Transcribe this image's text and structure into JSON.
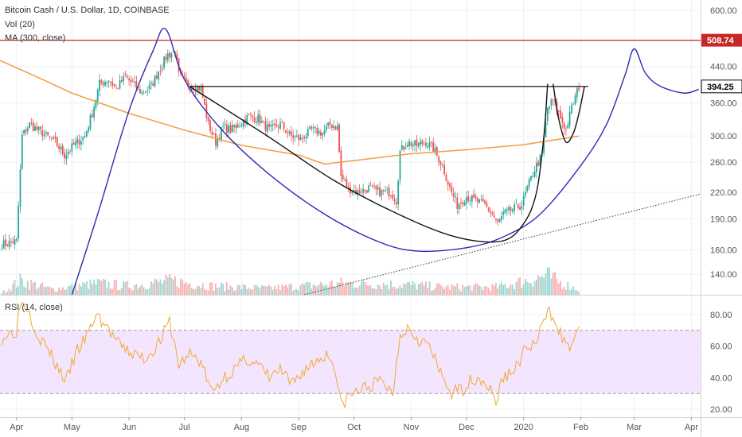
{
  "legend": {
    "symbol_line": "Bitcoin Cash / U.S. Dollar, 1D, COINBASE",
    "volume": "Vol (20)",
    "ma": "MA (300, close)",
    "rsi": "RSI (14, close)"
  },
  "chart_data": [
    {
      "type": "candlestick",
      "symbol": "Bitcoin Cash / U.S. Dollar",
      "interval": "1D",
      "exchange": "COINBASE",
      "yscale": "log",
      "ylim": [
        125,
        635
      ],
      "yticks": [
        140,
        160,
        190,
        220,
        260,
        300,
        360,
        440,
        600
      ],
      "ytick_labels": [
        "140.00",
        "160.00",
        "190.00",
        "220.00",
        "260.00",
        "300.00",
        "360.00",
        "440.00",
        "600.00"
      ],
      "xlim": [
        "2019-03-23",
        "2020-04-06"
      ],
      "xticks": [
        {
          "date": "2019-04-01",
          "label": "Apr"
        },
        {
          "date": "2019-05-01",
          "label": "May"
        },
        {
          "date": "2019-06-01",
          "label": "Jun"
        },
        {
          "date": "2019-07-01",
          "label": "Jul"
        },
        {
          "date": "2019-08-01",
          "label": "Aug"
        },
        {
          "date": "2019-09-01",
          "label": "Sep"
        },
        {
          "date": "2019-10-01",
          "label": "Oct"
        },
        {
          "date": "2019-11-01",
          "label": "Nov"
        },
        {
          "date": "2019-12-01",
          "label": "Dec"
        },
        {
          "date": "2020-01-01",
          "label": "2020"
        },
        {
          "date": "2020-02-01",
          "label": "Feb"
        },
        {
          "date": "2020-03-01",
          "label": "Mar"
        },
        {
          "date": "2020-04-01",
          "label": "Apr"
        }
      ],
      "close_path": [
        [
          "2019-03-24",
          165
        ],
        [
          "2019-04-01",
          168
        ],
        [
          "2019-04-04",
          300
        ],
        [
          "2019-04-08",
          320
        ],
        [
          "2019-04-15",
          305
        ],
        [
          "2019-04-22",
          290
        ],
        [
          "2019-04-27",
          270
        ],
        [
          "2019-05-02",
          285
        ],
        [
          "2019-05-08",
          300
        ],
        [
          "2019-05-12",
          340
        ],
        [
          "2019-05-16",
          400
        ],
        [
          "2019-05-21",
          410
        ],
        [
          "2019-05-25",
          390
        ],
        [
          "2019-05-30",
          415
        ],
        [
          "2019-06-03",
          400
        ],
        [
          "2019-06-08",
          380
        ],
        [
          "2019-06-13",
          395
        ],
        [
          "2019-06-17",
          430
        ],
        [
          "2019-06-22",
          470
        ],
        [
          "2019-06-26",
          480
        ],
        [
          "2019-06-28",
          420
        ],
        [
          "2019-07-02",
          400
        ],
        [
          "2019-07-06",
          395
        ],
        [
          "2019-07-10",
          390
        ],
        [
          "2019-07-14",
          320
        ],
        [
          "2019-07-18",
          290
        ],
        [
          "2019-07-22",
          315
        ],
        [
          "2019-07-26",
          310
        ],
        [
          "2019-07-31",
          320
        ],
        [
          "2019-08-05",
          335
        ],
        [
          "2019-08-10",
          330
        ],
        [
          "2019-08-16",
          310
        ],
        [
          "2019-08-22",
          320
        ],
        [
          "2019-08-28",
          300
        ],
        [
          "2019-09-02",
          295
        ],
        [
          "2019-09-08",
          310
        ],
        [
          "2019-09-14",
          305
        ],
        [
          "2019-09-18",
          320
        ],
        [
          "2019-09-22",
          315
        ],
        [
          "2019-09-24",
          240
        ],
        [
          "2019-09-28",
          225
        ],
        [
          "2019-10-03",
          220
        ],
        [
          "2019-10-09",
          225
        ],
        [
          "2019-10-15",
          220
        ],
        [
          "2019-10-21",
          220
        ],
        [
          "2019-10-24",
          210
        ],
        [
          "2019-10-26",
          275
        ],
        [
          "2019-10-30",
          290
        ],
        [
          "2019-11-04",
          285
        ],
        [
          "2019-11-09",
          290
        ],
        [
          "2019-11-13",
          280
        ],
        [
          "2019-11-18",
          255
        ],
        [
          "2019-11-22",
          225
        ],
        [
          "2019-11-26",
          205
        ],
        [
          "2019-12-01",
          215
        ],
        [
          "2019-12-06",
          210
        ],
        [
          "2019-12-11",
          205
        ],
        [
          "2019-12-15",
          195
        ],
        [
          "2019-12-18",
          185
        ],
        [
          "2019-12-21",
          195
        ],
        [
          "2019-12-26",
          200
        ],
        [
          "2019-12-31",
          205
        ],
        [
          "2020-01-03",
          225
        ],
        [
          "2020-01-07",
          250
        ],
        [
          "2020-01-11",
          270
        ],
        [
          "2020-01-14",
          350
        ],
        [
          "2020-01-17",
          365
        ],
        [
          "2020-01-20",
          340
        ],
        [
          "2020-01-24",
          310
        ],
        [
          "2020-01-27",
          350
        ],
        [
          "2020-01-31",
          394.25
        ]
      ],
      "volume_path": [
        [
          "2019-03-24",
          0.08
        ],
        [
          "2019-04-03",
          0.55
        ],
        [
          "2019-04-06",
          0.5
        ],
        [
          "2019-04-20",
          0.22
        ],
        [
          "2019-05-15",
          0.45
        ],
        [
          "2019-05-30",
          0.35
        ],
        [
          "2019-06-25",
          0.55
        ],
        [
          "2019-07-15",
          0.35
        ],
        [
          "2019-08-15",
          0.25
        ],
        [
          "2019-09-24",
          0.45
        ],
        [
          "2019-10-26",
          0.4
        ],
        [
          "2019-11-20",
          0.3
        ],
        [
          "2019-12-18",
          0.3
        ],
        [
          "2020-01-14",
          0.75
        ],
        [
          "2020-01-20",
          0.5
        ],
        [
          "2020-01-31",
          0.2
        ]
      ],
      "ma_300": [
        [
          "2019-03-23",
          455
        ],
        [
          "2019-04-15",
          410
        ],
        [
          "2019-05-01",
          380
        ],
        [
          "2019-06-01",
          340
        ],
        [
          "2019-07-01",
          310
        ],
        [
          "2019-08-01",
          285
        ],
        [
          "2019-09-01",
          270
        ],
        [
          "2019-09-15",
          257
        ],
        [
          "2019-10-01",
          262
        ],
        [
          "2019-11-01",
          272
        ],
        [
          "2019-12-01",
          278
        ],
        [
          "2020-01-01",
          286
        ],
        [
          "2020-01-31",
          300
        ]
      ],
      "resistance_lines": [
        {
          "value": 508.74,
          "label": "508.74",
          "color": "#c62828"
        },
        {
          "value": 394.25,
          "label": "394.25",
          "color": "#000000",
          "from": "2019-07-04"
        }
      ],
      "drawings": [
        {
          "name": "large-cup-arc",
          "color": "#2e2bb0",
          "points": [
            [
              "2019-05-01",
              125
            ],
            [
              "2019-05-15",
              195
            ],
            [
              "2019-06-01",
              345
            ],
            [
              "2019-06-14",
              480
            ],
            [
              "2019-06-21",
              540
            ],
            [
              "2019-07-01",
              410
            ],
            [
              "2019-07-20",
              315
            ],
            [
              "2019-08-15",
              245
            ],
            [
              "2019-09-15",
              195
            ],
            [
              "2019-10-15",
              167
            ],
            [
              "2019-11-05",
              159
            ],
            [
              "2019-12-01",
              162
            ],
            [
              "2019-12-21",
              172
            ],
            [
              "2020-01-10",
              195
            ],
            [
              "2020-02-01",
              255
            ],
            [
              "2020-02-15",
              320
            ],
            [
              "2020-02-25",
              420
            ],
            [
              "2020-03-01",
              485
            ],
            [
              "2020-03-07",
              425
            ],
            [
              "2020-03-15",
              395
            ],
            [
              "2020-03-28",
              380
            ],
            [
              "2020-04-05",
              388
            ]
          ]
        },
        {
          "name": "inner-cup-arc",
          "color": "#111111",
          "points": [
            [
              "2019-07-04",
              394
            ],
            [
              "2019-08-15",
              300
            ],
            [
              "2019-09-20",
              235
            ],
            [
              "2019-10-25",
              195
            ],
            [
              "2019-11-25",
              172
            ],
            [
              "2019-12-20",
              168
            ],
            [
              "2020-01-01",
              185
            ],
            [
              "2020-01-08",
              220
            ],
            [
              "2020-01-12",
              300
            ],
            [
              "2020-01-14",
              400
            ]
          ]
        },
        {
          "name": "handle-arc",
          "color": "#111111",
          "points": [
            [
              "2020-01-17",
              400
            ],
            [
              "2020-01-20",
              330
            ],
            [
              "2020-01-24",
              290
            ],
            [
              "2020-01-28",
              305
            ],
            [
              "2020-01-31",
              340
            ],
            [
              "2020-02-03",
              394
            ]
          ]
        },
        {
          "name": "dotted-trend-line",
          "color": "#333333",
          "dashed": true,
          "points": [
            [
              "2019-09-04",
              125
            ],
            [
              "2020-04-06",
              218
            ]
          ]
        }
      ]
    },
    {
      "type": "line",
      "indicator": "RSI (14, close)",
      "ylim": [
        15,
        92
      ],
      "yticks": [
        20,
        40,
        60,
        80
      ],
      "ytick_labels": [
        "20.00",
        "40.00",
        "60.00",
        "80.00"
      ],
      "bands": [
        30,
        70
      ],
      "band_color": "#f0dcff",
      "line_color": "#f0a832",
      "points": [
        [
          "2019-03-24",
          65
        ],
        [
          "2019-03-28",
          68
        ],
        [
          "2019-04-01",
          70
        ],
        [
          "2019-04-03",
          88
        ],
        [
          "2019-04-07",
          85
        ],
        [
          "2019-04-12",
          68
        ],
        [
          "2019-04-18",
          58
        ],
        [
          "2019-04-24",
          45
        ],
        [
          "2019-04-28",
          38
        ],
        [
          "2019-05-03",
          55
        ],
        [
          "2019-05-10",
          68
        ],
        [
          "2019-05-14",
          80
        ],
        [
          "2019-05-20",
          72
        ],
        [
          "2019-05-27",
          60
        ],
        [
          "2019-06-03",
          55
        ],
        [
          "2019-06-10",
          52
        ],
        [
          "2019-06-17",
          62
        ],
        [
          "2019-06-23",
          75
        ],
        [
          "2019-06-28",
          48
        ],
        [
          "2019-07-04",
          55
        ],
        [
          "2019-07-10",
          50
        ],
        [
          "2019-07-16",
          30
        ],
        [
          "2019-07-22",
          40
        ],
        [
          "2019-07-28",
          45
        ],
        [
          "2019-08-04",
          52
        ],
        [
          "2019-08-10",
          48
        ],
        [
          "2019-08-16",
          40
        ],
        [
          "2019-08-22",
          45
        ],
        [
          "2019-08-28",
          35
        ],
        [
          "2019-09-04",
          45
        ],
        [
          "2019-09-10",
          50
        ],
        [
          "2019-09-16",
          55
        ],
        [
          "2019-09-20",
          50
        ],
        [
          "2019-09-24",
          22
        ],
        [
          "2019-09-28",
          28
        ],
        [
          "2019-10-04",
          32
        ],
        [
          "2019-10-10",
          35
        ],
        [
          "2019-10-16",
          38
        ],
        [
          "2019-10-22",
          30
        ],
        [
          "2019-10-26",
          68
        ],
        [
          "2019-10-30",
          72
        ],
        [
          "2019-11-05",
          65
        ],
        [
          "2019-11-11",
          60
        ],
        [
          "2019-11-17",
          42
        ],
        [
          "2019-11-23",
          30
        ],
        [
          "2019-11-29",
          33
        ],
        [
          "2019-12-05",
          40
        ],
        [
          "2019-12-11",
          38
        ],
        [
          "2019-12-17",
          25
        ],
        [
          "2019-12-21",
          40
        ],
        [
          "2019-12-27",
          45
        ],
        [
          "2020-01-02",
          58
        ],
        [
          "2020-01-08",
          62
        ],
        [
          "2020-01-14",
          82
        ],
        [
          "2020-01-18",
          78
        ],
        [
          "2020-01-22",
          65
        ],
        [
          "2020-01-25",
          58
        ],
        [
          "2020-01-28",
          65
        ],
        [
          "2020-01-31",
          70
        ]
      ]
    }
  ]
}
